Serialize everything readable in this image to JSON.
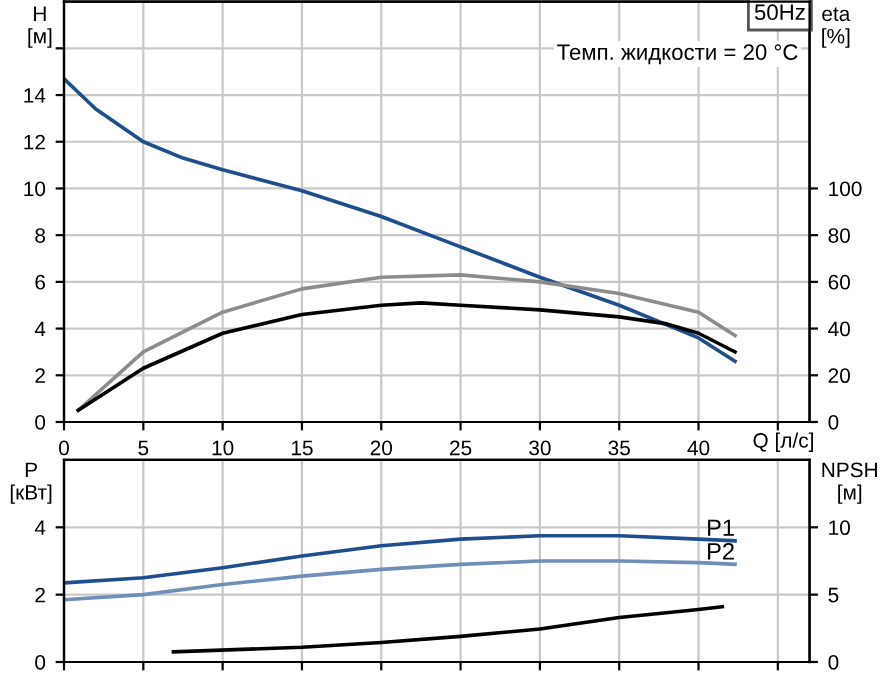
{
  "chart_data": [
    {
      "type": "line",
      "title": "50Hz",
      "xlabel": "Q [л/с]",
      "ylabel": "H\n[м]",
      "y2label": "eta\n[%]",
      "annotations": [
        "Темп. жидкости = 20 °C"
      ],
      "xlim": [
        0,
        47
      ],
      "xticks": [
        0,
        5,
        10,
        15,
        20,
        25,
        30,
        35,
        40,
        {
          "value": 45,
          "label": null
        }
      ],
      "ylim": [
        0,
        18
      ],
      "yticks": [
        0,
        2,
        4,
        6,
        8,
        10,
        12,
        14,
        {
          "value": 16,
          "label": null
        }
      ],
      "y2lim": [
        0,
        180
      ],
      "y2ticks": [
        0,
        20,
        40,
        60,
        80,
        100
      ],
      "grid": true,
      "legend": false,
      "series": [
        {
          "color": "#1f4e8c",
          "x": [
            0,
            2,
            5,
            7.5,
            10,
            15,
            20,
            25,
            30,
            35,
            40,
            42.3
          ],
          "values": [
            14.7,
            13.4,
            12.0,
            11.3,
            10.8,
            9.9,
            8.8,
            7.5,
            6.2,
            5.0,
            3.6,
            2.6
          ]
        },
        {
          "color": "#8c8c8c",
          "axis": "y2",
          "x": [
            0.9,
            5,
            10,
            15,
            20,
            25,
            30,
            35,
            40,
            42.3
          ],
          "values": [
            5,
            30,
            47,
            57,
            62,
            63,
            60,
            55,
            47,
            37
          ]
        },
        {
          "color": "#000000",
          "axis": "y2",
          "x": [
            0.9,
            5,
            10,
            15,
            20,
            22.5,
            25,
            30,
            35,
            38,
            40,
            42.3
          ],
          "values": [
            5,
            23,
            38,
            46,
            50,
            51,
            50,
            48,
            45,
            42,
            38,
            30
          ]
        }
      ]
    },
    {
      "type": "line",
      "ylabel": "P\n[кВт]",
      "y2label": "NPSH\n[м]",
      "xlim": [
        0,
        47
      ],
      "xticks": [
        0,
        5,
        10,
        15,
        20,
        25,
        30,
        35,
        40,
        45
      ],
      "tick_labels": "y",
      "ylim": [
        0,
        6
      ],
      "yticks": [
        0,
        2,
        4
      ],
      "y2lim": [
        0,
        15
      ],
      "y2ticks": [
        0,
        5,
        10
      ],
      "grid": true,
      "legend": false,
      "series": [
        {
          "name": "P1",
          "color": "#1f4e8c",
          "x": [
            0,
            5,
            10,
            15,
            20,
            25,
            30,
            35,
            40,
            42.3
          ],
          "values": [
            2.35,
            2.5,
            2.8,
            3.15,
            3.45,
            3.65,
            3.75,
            3.75,
            3.65,
            3.6
          ]
        },
        {
          "name": "P2",
          "color": "#6f8fb8",
          "x": [
            0,
            5,
            10,
            15,
            20,
            25,
            30,
            35,
            40,
            42.3
          ],
          "values": [
            1.85,
            2.0,
            2.3,
            2.55,
            2.75,
            2.9,
            3.0,
            3.0,
            2.95,
            2.9
          ]
        },
        {
          "color": "#000000",
          "axis": "y2",
          "x": [
            6.9,
            15,
            20,
            25,
            30,
            35,
            40,
            41.5
          ],
          "values": [
            0.75,
            1.1,
            1.45,
            1.9,
            2.45,
            3.3,
            3.9,
            4.1
          ]
        }
      ]
    }
  ]
}
